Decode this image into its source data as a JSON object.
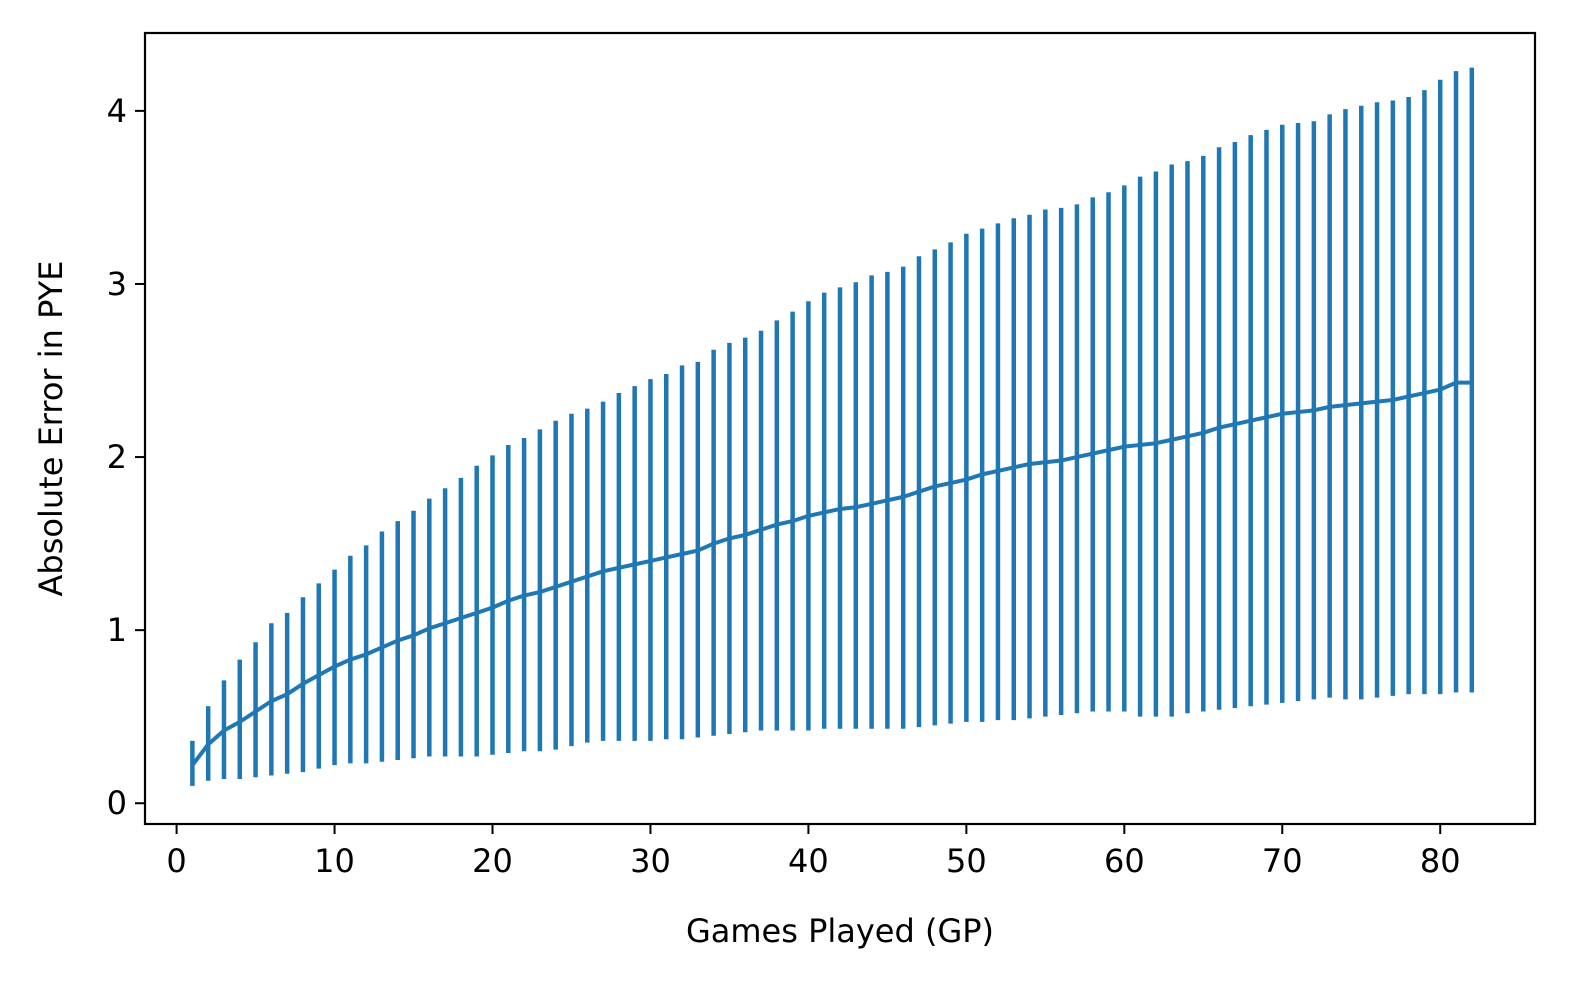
{
  "chart_data": {
    "type": "line",
    "title": "",
    "xlabel": "Games Played (GP)",
    "ylabel": "Absolute Error in PYE",
    "xlim": [
      -2,
      86
    ],
    "ylim": [
      -0.12,
      4.45
    ],
    "xticks": [
      0,
      10,
      20,
      30,
      40,
      50,
      60,
      70,
      80
    ],
    "xtick_labels": [
      "0",
      "10",
      "20",
      "30",
      "40",
      "50",
      "60",
      "70",
      "80"
    ],
    "yticks": [
      0,
      1,
      2,
      3,
      4
    ],
    "ytick_labels": [
      "0",
      "1",
      "2",
      "3",
      "4"
    ],
    "grid": false,
    "legend": "none",
    "color": "#1f77b4",
    "series": [
      {
        "x": [
          1,
          2,
          3,
          4,
          5,
          6,
          7,
          8,
          9,
          10,
          11,
          12,
          13,
          14,
          15,
          16,
          17,
          18,
          19,
          20,
          21,
          22,
          23,
          24,
          25,
          26,
          27,
          28,
          29,
          30,
          31,
          32,
          33,
          34,
          35,
          36,
          37,
          38,
          39,
          40,
          41,
          42,
          43,
          44,
          45,
          46,
          47,
          48,
          49,
          50,
          51,
          52,
          53,
          54,
          55,
          56,
          57,
          58,
          59,
          60,
          61,
          62,
          63,
          64,
          65,
          66,
          67,
          68,
          69,
          70,
          71,
          72,
          73,
          74,
          75,
          76,
          77,
          78,
          79,
          80,
          81,
          82
        ],
        "mean": [
          0.22,
          0.34,
          0.42,
          0.47,
          0.53,
          0.59,
          0.63,
          0.69,
          0.74,
          0.79,
          0.83,
          0.86,
          0.9,
          0.94,
          0.97,
          1.01,
          1.04,
          1.07,
          1.1,
          1.13,
          1.17,
          1.2,
          1.22,
          1.25,
          1.28,
          1.31,
          1.34,
          1.36,
          1.38,
          1.4,
          1.42,
          1.44,
          1.46,
          1.5,
          1.53,
          1.55,
          1.58,
          1.61,
          1.63,
          1.66,
          1.68,
          1.7,
          1.71,
          1.73,
          1.75,
          1.77,
          1.8,
          1.83,
          1.85,
          1.87,
          1.9,
          1.92,
          1.94,
          1.96,
          1.97,
          1.98,
          2.0,
          2.02,
          2.04,
          2.06,
          2.07,
          2.08,
          2.1,
          2.12,
          2.14,
          2.17,
          2.19,
          2.21,
          2.23,
          2.25,
          2.26,
          2.27,
          2.29,
          2.3,
          2.31,
          2.32,
          2.33,
          2.35,
          2.37,
          2.39,
          2.43,
          2.43
        ],
        "lower": [
          0.1,
          0.13,
          0.14,
          0.14,
          0.15,
          0.16,
          0.17,
          0.18,
          0.2,
          0.22,
          0.23,
          0.23,
          0.24,
          0.25,
          0.26,
          0.27,
          0.27,
          0.27,
          0.27,
          0.28,
          0.29,
          0.3,
          0.3,
          0.31,
          0.33,
          0.35,
          0.36,
          0.36,
          0.36,
          0.36,
          0.37,
          0.37,
          0.38,
          0.39,
          0.4,
          0.41,
          0.42,
          0.42,
          0.42,
          0.42,
          0.43,
          0.43,
          0.43,
          0.43,
          0.43,
          0.43,
          0.44,
          0.45,
          0.46,
          0.47,
          0.47,
          0.48,
          0.48,
          0.49,
          0.5,
          0.51,
          0.52,
          0.53,
          0.53,
          0.53,
          0.5,
          0.5,
          0.5,
          0.52,
          0.53,
          0.54,
          0.55,
          0.56,
          0.57,
          0.58,
          0.59,
          0.6,
          0.61,
          0.6,
          0.6,
          0.61,
          0.62,
          0.63,
          0.63,
          0.63,
          0.64,
          0.64
        ],
        "upper": [
          0.36,
          0.56,
          0.71,
          0.83,
          0.93,
          1.04,
          1.1,
          1.19,
          1.27,
          1.35,
          1.43,
          1.49,
          1.57,
          1.63,
          1.69,
          1.76,
          1.82,
          1.88,
          1.95,
          2.01,
          2.07,
          2.11,
          2.16,
          2.21,
          2.25,
          2.28,
          2.32,
          2.37,
          2.41,
          2.45,
          2.48,
          2.53,
          2.55,
          2.62,
          2.66,
          2.69,
          2.73,
          2.79,
          2.84,
          2.9,
          2.95,
          2.98,
          3.01,
          3.05,
          3.07,
          3.1,
          3.16,
          3.2,
          3.24,
          3.29,
          3.32,
          3.35,
          3.38,
          3.4,
          3.43,
          3.44,
          3.46,
          3.5,
          3.53,
          3.57,
          3.62,
          3.65,
          3.69,
          3.71,
          3.74,
          3.79,
          3.82,
          3.86,
          3.89,
          3.92,
          3.93,
          3.94,
          3.98,
          4.01,
          4.03,
          4.05,
          4.06,
          4.08,
          4.12,
          4.18,
          4.23,
          4.25
        ]
      }
    ]
  }
}
